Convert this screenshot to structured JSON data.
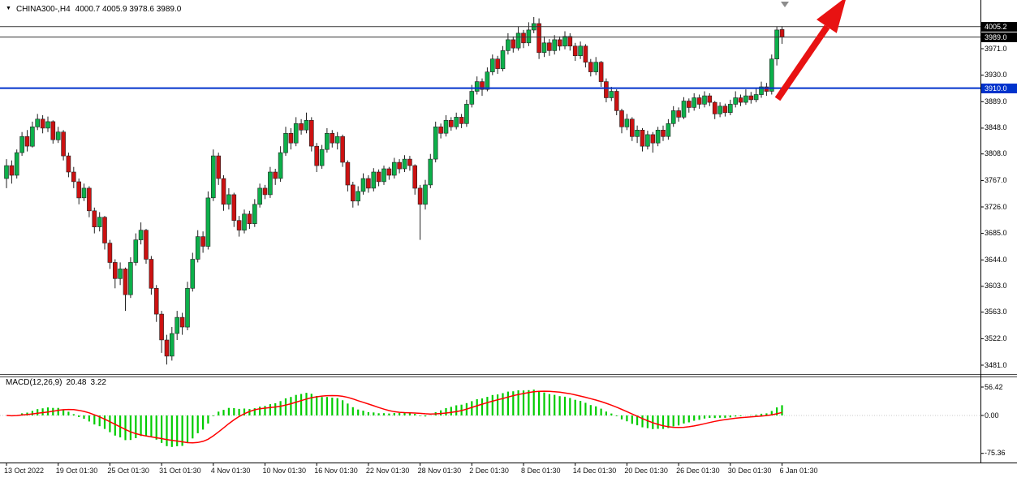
{
  "header": {
    "dropdown_icon": "▼",
    "symbol": "CHINA300-,H4",
    "ohlc": "4000.7 4005.9 3978.6 3989.0"
  },
  "macd_panel": {
    "label": "MACD(12,26,9)",
    "value_main": "20.48",
    "value_signal": "3.22"
  },
  "price_axis": {
    "badges": [
      {
        "label": "4005.2",
        "value": 4005.2,
        "bg": "#000000"
      },
      {
        "label": "3989.0",
        "value": 3989.0,
        "bg": "#000000"
      },
      {
        "label": "3910.0",
        "value": 3910.0,
        "bg": "#0033cc"
      }
    ]
  },
  "colors": {
    "bull": "#0cb04a",
    "bear": "#cc1111",
    "outline": "#222222",
    "macd_hist": "#00cc00",
    "macd_signal": "#ff0000",
    "support_line": "#0033cc",
    "price_line": "#333333",
    "arrow": "#e81212",
    "shift_marker": "#8c8c8c"
  },
  "chart_data": {
    "type": "candlestick",
    "symbol": "CHINA300",
    "timeframe": "H4",
    "title": "CHINA300-,H4",
    "last_bar": {
      "open": 4000.7,
      "high": 4005.9,
      "low": 3978.6,
      "close": 3989.0
    },
    "y_ticks": [
      3971,
      3930,
      3889,
      3848,
      3808,
      3767,
      3726,
      3685,
      3644,
      3603,
      3563,
      3522,
      3481
    ],
    "y_tick_labels": [
      "3971.0",
      "3930.0",
      "3889.0",
      "3848.0",
      "3808.0",
      "3767.0",
      "3726.0",
      "3685.0",
      "3644.0",
      "3603.0",
      "3563.0",
      "3522.0",
      "3481.0"
    ],
    "x_labels": [
      "13 Oct 2022",
      "19 Oct 01:30",
      "25 Oct 01:30",
      "31 Oct 01:30",
      "4 Nov 01:30",
      "10 Nov 01:30",
      "16 Nov 01:30",
      "22 Nov 01:30",
      "28 Nov 01:30",
      "2 Dec 01:30",
      "8 Dec 01:30",
      "14 Dec 01:30",
      "20 Dec 01:30",
      "26 Dec 01:30",
      "30 Dec 01:30",
      "6 Jan 01:30"
    ],
    "levels": {
      "ask": 4005.2,
      "bid_last": 3989.0,
      "support": 3910.0
    },
    "indicator": {
      "type": "MACD",
      "fast": 12,
      "slow": 26,
      "signal": 9,
      "last_macd": 20.48,
      "last_signal": 3.22,
      "tick_labels": [
        "56.42",
        "0.00",
        "-75.36"
      ],
      "tick_values": [
        56.42,
        0,
        -75.36
      ]
    },
    "annotations": [
      {
        "type": "arrow",
        "color": "#e81212",
        "direction": "up-right",
        "shaft": [
          [
            958,
            122
          ],
          [
            1019,
            33
          ]
        ],
        "head": [
          [
            1043,
            -4
          ],
          [
            1030.8,
            40.9
          ],
          [
            1006,
            24.1
          ]
        ]
      },
      {
        "type": "shift-marker",
        "color": "#8c8c8c",
        "points": [
          [
            962,
            2
          ],
          [
            972,
            2
          ],
          [
            967,
            9
          ]
        ]
      }
    ],
    "candles": [
      [
        3770,
        3800,
        3755,
        3790
      ],
      [
        3790,
        3798,
        3762,
        3775
      ],
      [
        3775,
        3815,
        3770,
        3810
      ],
      [
        3810,
        3842,
        3805,
        3835
      ],
      [
        3835,
        3845,
        3812,
        3820
      ],
      [
        3820,
        3858,
        3818,
        3850
      ],
      [
        3850,
        3870,
        3845,
        3862
      ],
      [
        3862,
        3868,
        3840,
        3848
      ],
      [
        3848,
        3866,
        3842,
        3858
      ],
      [
        3858,
        3860,
        3824,
        3830
      ],
      [
        3830,
        3850,
        3825,
        3842
      ],
      [
        3842,
        3845,
        3798,
        3805
      ],
      [
        3805,
        3810,
        3772,
        3780
      ],
      [
        3780,
        3788,
        3755,
        3765
      ],
      [
        3765,
        3770,
        3730,
        3740
      ],
      [
        3740,
        3762,
        3735,
        3755
      ],
      [
        3755,
        3758,
        3710,
        3720
      ],
      [
        3720,
        3725,
        3685,
        3695
      ],
      [
        3695,
        3718,
        3688,
        3710
      ],
      [
        3710,
        3712,
        3660,
        3670
      ],
      [
        3670,
        3675,
        3630,
        3640
      ],
      [
        3640,
        3645,
        3600,
        3615
      ],
      [
        3615,
        3640,
        3605,
        3630
      ],
      [
        3630,
        3632,
        3565,
        3590
      ],
      [
        3590,
        3648,
        3585,
        3640
      ],
      [
        3640,
        3685,
        3635,
        3675
      ],
      [
        3675,
        3702,
        3668,
        3690
      ],
      [
        3690,
        3692,
        3638,
        3645
      ],
      [
        3645,
        3650,
        3590,
        3600
      ],
      [
        3600,
        3605,
        3548,
        3560
      ],
      [
        3560,
        3565,
        3500,
        3520
      ],
      [
        3520,
        3528,
        3482,
        3495
      ],
      [
        3495,
        3540,
        3488,
        3530
      ],
      [
        3530,
        3565,
        3520,
        3555
      ],
      [
        3555,
        3562,
        3528,
        3540
      ],
      [
        3540,
        3610,
        3535,
        3600
      ],
      [
        3600,
        3655,
        3595,
        3645
      ],
      [
        3645,
        3690,
        3640,
        3680
      ],
      [
        3680,
        3688,
        3655,
        3665
      ],
      [
        3665,
        3750,
        3660,
        3740
      ],
      [
        3740,
        3815,
        3735,
        3805
      ],
      [
        3805,
        3810,
        3760,
        3770
      ],
      [
        3770,
        3775,
        3720,
        3730
      ],
      [
        3730,
        3755,
        3722,
        3745
      ],
      [
        3745,
        3748,
        3695,
        3705
      ],
      [
        3705,
        3712,
        3680,
        3690
      ],
      [
        3690,
        3722,
        3685,
        3715
      ],
      [
        3715,
        3720,
        3692,
        3700
      ],
      [
        3700,
        3738,
        3695,
        3730
      ],
      [
        3730,
        3762,
        3725,
        3755
      ],
      [
        3755,
        3760,
        3738,
        3745
      ],
      [
        3745,
        3788,
        3740,
        3780
      ],
      [
        3780,
        3785,
        3760,
        3770
      ],
      [
        3770,
        3820,
        3765,
        3810
      ],
      [
        3810,
        3850,
        3805,
        3840
      ],
      [
        3840,
        3848,
        3815,
        3825
      ],
      [
        3825,
        3865,
        3820,
        3855
      ],
      [
        3855,
        3862,
        3838,
        3845
      ],
      [
        3845,
        3872,
        3840,
        3860
      ],
      [
        3860,
        3865,
        3812,
        3820
      ],
      [
        3820,
        3825,
        3780,
        3790
      ],
      [
        3790,
        3822,
        3785,
        3815
      ],
      [
        3815,
        3848,
        3810,
        3840
      ],
      [
        3840,
        3845,
        3818,
        3825
      ],
      [
        3825,
        3842,
        3815,
        3835
      ],
      [
        3835,
        3838,
        3788,
        3795
      ],
      [
        3795,
        3798,
        3750,
        3760
      ],
      [
        3760,
        3765,
        3725,
        3735
      ],
      [
        3735,
        3758,
        3728,
        3750
      ],
      [
        3750,
        3778,
        3745,
        3770
      ],
      [
        3770,
        3775,
        3748,
        3755
      ],
      [
        3755,
        3786,
        3750,
        3780
      ],
      [
        3780,
        3784,
        3758,
        3765
      ],
      [
        3765,
        3790,
        3760,
        3785
      ],
      [
        3785,
        3788,
        3768,
        3775
      ],
      [
        3775,
        3802,
        3770,
        3795
      ],
      [
        3795,
        3800,
        3778,
        3785
      ],
      [
        3785,
        3806,
        3780,
        3800
      ],
      [
        3800,
        3805,
        3782,
        3790
      ],
      [
        3790,
        3792,
        3745,
        3755
      ],
      [
        3755,
        3760,
        3675,
        3730
      ],
      [
        3730,
        3768,
        3722,
        3760
      ],
      [
        3760,
        3808,
        3755,
        3800
      ],
      [
        3800,
        3858,
        3795,
        3850
      ],
      [
        3850,
        3855,
        3832,
        3840
      ],
      [
        3840,
        3868,
        3835,
        3860
      ],
      [
        3860,
        3865,
        3844,
        3850
      ],
      [
        3850,
        3872,
        3846,
        3865
      ],
      [
        3865,
        3870,
        3848,
        3855
      ],
      [
        3855,
        3892,
        3850,
        3885
      ],
      [
        3885,
        3915,
        3880,
        3905
      ],
      [
        3905,
        3928,
        3900,
        3920
      ],
      [
        3920,
        3925,
        3898,
        3908
      ],
      [
        3908,
        3942,
        3905,
        3935
      ],
      [
        3935,
        3962,
        3930,
        3955
      ],
      [
        3955,
        3960,
        3932,
        3940
      ],
      [
        3940,
        3975,
        3936,
        3968
      ],
      [
        3968,
        3995,
        3962,
        3985
      ],
      [
        3985,
        3990,
        3965,
        3972
      ],
      [
        3972,
        4005,
        3968,
        3995
      ],
      [
        3995,
        4000,
        3972,
        3980
      ],
      [
        3980,
        4012,
        3975,
        4000
      ],
      [
        4000,
        4020,
        3995,
        4010
      ],
      [
        4010,
        4018,
        3955,
        3965
      ],
      [
        3965,
        3990,
        3958,
        3980
      ],
      [
        3980,
        3986,
        3960,
        3968
      ],
      [
        3968,
        3992,
        3962,
        3985
      ],
      [
        3985,
        3990,
        3968,
        3975
      ],
      [
        3975,
        3998,
        3970,
        3990
      ],
      [
        3990,
        3995,
        3968,
        3975
      ],
      [
        3975,
        3980,
        3952,
        3960
      ],
      [
        3960,
        3982,
        3955,
        3975
      ],
      [
        3975,
        3978,
        3942,
        3950
      ],
      [
        3950,
        3955,
        3928,
        3935
      ],
      [
        3935,
        3958,
        3930,
        3950
      ],
      [
        3950,
        3952,
        3912,
        3920
      ],
      [
        3920,
        3925,
        3888,
        3895
      ],
      [
        3895,
        3912,
        3890,
        3905
      ],
      [
        3905,
        3908,
        3868,
        3875
      ],
      [
        3875,
        3878,
        3840,
        3850
      ],
      [
        3850,
        3870,
        3845,
        3862
      ],
      [
        3862,
        3865,
        3828,
        3835
      ],
      [
        3835,
        3852,
        3825,
        3845
      ],
      [
        3845,
        3848,
        3812,
        3820
      ],
      [
        3820,
        3844,
        3815,
        3838
      ],
      [
        3838,
        3842,
        3810,
        3825
      ],
      [
        3825,
        3850,
        3820,
        3845
      ],
      [
        3845,
        3852,
        3828,
        3835
      ],
      [
        3835,
        3862,
        3830,
        3855
      ],
      [
        3855,
        3882,
        3850,
        3875
      ],
      [
        3875,
        3880,
        3858,
        3865
      ],
      [
        3865,
        3896,
        3862,
        3890
      ],
      [
        3890,
        3894,
        3872,
        3880
      ],
      [
        3880,
        3902,
        3875,
        3895
      ],
      [
        3895,
        3900,
        3878,
        3885
      ],
      [
        3885,
        3905,
        3880,
        3898
      ],
      [
        3898,
        3902,
        3882,
        3888
      ],
      [
        3888,
        3890,
        3862,
        3870
      ],
      [
        3870,
        3888,
        3865,
        3882
      ],
      [
        3882,
        3886,
        3866,
        3872
      ],
      [
        3872,
        3892,
        3868,
        3885
      ],
      [
        3885,
        3905,
        3880,
        3895
      ],
      [
        3895,
        3900,
        3882,
        3888
      ],
      [
        3888,
        3908,
        3884,
        3898
      ],
      [
        3898,
        3904,
        3886,
        3892
      ],
      [
        3892,
        3910,
        3888,
        3900
      ],
      [
        3900,
        3920,
        3895,
        3912
      ],
      [
        3912,
        3918,
        3898,
        3905
      ],
      [
        3905,
        3962,
        3900,
        3955
      ],
      [
        3955,
        4005,
        3945,
        4000
      ],
      [
        4000.7,
        4005.9,
        3978.6,
        3989.0
      ]
    ]
  }
}
